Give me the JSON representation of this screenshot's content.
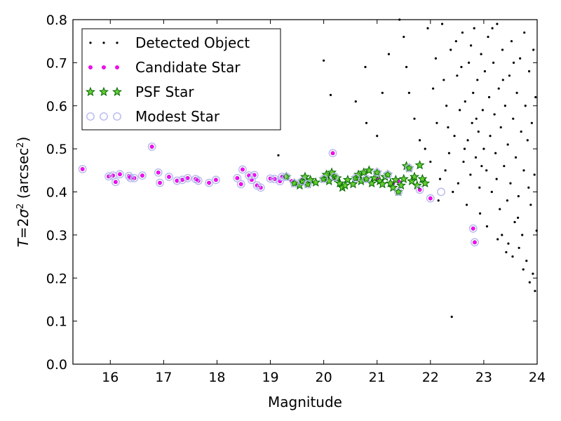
{
  "chart_data": {
    "type": "scatter",
    "xlabel": "Magnitude",
    "ylabel_parts": [
      "T",
      "=",
      "2",
      "σ",
      "2",
      " (arcsec",
      "2",
      ")"
    ],
    "xlim": [
      15.3,
      24.0
    ],
    "ylim": [
      0.0,
      0.8
    ],
    "x_ticks": [
      16,
      17,
      18,
      19,
      20,
      21,
      22,
      23,
      24
    ],
    "y_ticks": [
      0.0,
      0.1,
      0.2,
      0.3,
      0.4,
      0.5,
      0.6,
      0.7,
      0.8
    ],
    "legend": {
      "location": "top-left",
      "border": true
    },
    "colors": {
      "detected": "#000000",
      "candidate": "#ff00ff",
      "psf_fill": "#66cc33",
      "psf_edge": "#006600",
      "modest": "#b8b8f0"
    },
    "series": [
      {
        "name": "Detected Object",
        "marker": "dot",
        "points": [
          [
            19.15,
            0.485
          ],
          [
            20.0,
            0.705
          ],
          [
            20.13,
            0.625
          ],
          [
            20.6,
            0.61
          ],
          [
            20.8,
            0.56
          ],
          [
            21.0,
            0.53
          ],
          [
            20.78,
            0.69
          ],
          [
            21.1,
            0.63
          ],
          [
            21.22,
            0.72
          ],
          [
            21.42,
            0.8
          ],
          [
            21.5,
            0.76
          ],
          [
            21.55,
            0.69
          ],
          [
            21.6,
            0.63
          ],
          [
            21.7,
            0.57
          ],
          [
            21.8,
            0.52
          ],
          [
            21.9,
            0.5
          ],
          [
            21.95,
            0.78
          ],
          [
            22.0,
            0.47
          ],
          [
            22.05,
            0.64
          ],
          [
            22.1,
            0.71
          ],
          [
            22.12,
            0.56
          ],
          [
            22.18,
            0.43
          ],
          [
            22.22,
            0.79
          ],
          [
            22.28,
            0.45
          ],
          [
            22.3,
            0.6
          ],
          [
            22.35,
            0.49
          ],
          [
            22.38,
            0.73
          ],
          [
            22.4,
            0.11
          ],
          [
            22.45,
            0.53
          ],
          [
            22.5,
            0.67
          ],
          [
            22.52,
            0.42
          ],
          [
            22.55,
            0.59
          ],
          [
            22.6,
            0.77
          ],
          [
            22.62,
            0.47
          ],
          [
            22.65,
            0.61
          ],
          [
            22.7,
            0.52
          ],
          [
            22.72,
            0.7
          ],
          [
            22.75,
            0.44
          ],
          [
            22.78,
            0.56
          ],
          [
            22.8,
            0.63
          ],
          [
            22.82,
            0.78
          ],
          [
            22.85,
            0.48
          ],
          [
            22.88,
            0.66
          ],
          [
            22.9,
            0.54
          ],
          [
            22.92,
            0.41
          ],
          [
            22.95,
            0.72
          ],
          [
            22.98,
            0.59
          ],
          [
            23.0,
            0.5
          ],
          [
            23.02,
            0.68
          ],
          [
            23.05,
            0.45
          ],
          [
            23.08,
            0.76
          ],
          [
            23.1,
            0.62
          ],
          [
            23.12,
            0.53
          ],
          [
            23.15,
            0.4
          ],
          [
            23.18,
            0.7
          ],
          [
            23.2,
            0.58
          ],
          [
            23.22,
            0.49
          ],
          [
            23.25,
            0.79
          ],
          [
            23.28,
            0.64
          ],
          [
            23.3,
            0.36
          ],
          [
            23.32,
            0.55
          ],
          [
            23.35,
            0.73
          ],
          [
            23.38,
            0.46
          ],
          [
            23.4,
            0.6
          ],
          [
            23.42,
            0.26
          ],
          [
            23.45,
            0.51
          ],
          [
            23.48,
            0.67
          ],
          [
            23.5,
            0.42
          ],
          [
            23.52,
            0.75
          ],
          [
            23.55,
            0.57
          ],
          [
            23.58,
            0.33
          ],
          [
            23.6,
            0.48
          ],
          [
            23.62,
            0.63
          ],
          [
            23.65,
            0.39
          ],
          [
            23.68,
            0.71
          ],
          [
            23.7,
            0.54
          ],
          [
            23.72,
            0.3
          ],
          [
            23.75,
            0.45
          ],
          [
            23.78,
            0.6
          ],
          [
            23.8,
            0.24
          ],
          [
            23.82,
            0.52
          ],
          [
            23.85,
            0.68
          ],
          [
            23.88,
            0.37
          ],
          [
            23.9,
            0.56
          ],
          [
            23.92,
            0.21
          ],
          [
            23.95,
            0.44
          ],
          [
            23.97,
            0.62
          ],
          [
            23.99,
            0.31
          ],
          [
            22.15,
            0.38
          ],
          [
            22.42,
            0.4
          ],
          [
            22.68,
            0.37
          ],
          [
            22.93,
            0.35
          ],
          [
            23.06,
            0.32
          ],
          [
            23.26,
            0.29
          ],
          [
            23.46,
            0.28
          ],
          [
            23.66,
            0.27
          ],
          [
            23.86,
            0.19
          ],
          [
            23.96,
            0.17
          ],
          [
            22.25,
            0.66
          ],
          [
            22.48,
            0.75
          ],
          [
            22.58,
            0.69
          ],
          [
            22.76,
            0.74
          ],
          [
            22.86,
            0.57
          ],
          [
            23.16,
            0.78
          ],
          [
            23.36,
            0.66
          ],
          [
            23.56,
            0.7
          ],
          [
            23.76,
            0.77
          ],
          [
            23.93,
            0.73
          ],
          [
            22.33,
            0.55
          ],
          [
            22.64,
            0.5
          ],
          [
            22.96,
            0.46
          ],
          [
            23.24,
            0.43
          ],
          [
            23.44,
            0.38
          ],
          [
            23.64,
            0.34
          ],
          [
            23.84,
            0.41
          ],
          [
            23.74,
            0.22
          ],
          [
            23.54,
            0.25
          ],
          [
            23.34,
            0.3
          ]
        ]
      },
      {
        "name": "Candidate Star",
        "marker": "circle-small",
        "points": [
          [
            15.48,
            0.453
          ],
          [
            15.97,
            0.436
          ],
          [
            16.05,
            0.438
          ],
          [
            16.1,
            0.423
          ],
          [
            16.18,
            0.441
          ],
          [
            16.35,
            0.437
          ],
          [
            16.38,
            0.432
          ],
          [
            16.45,
            0.432
          ],
          [
            16.6,
            0.438
          ],
          [
            16.78,
            0.505
          ],
          [
            16.9,
            0.445
          ],
          [
            16.93,
            0.421
          ],
          [
            17.1,
            0.435
          ],
          [
            17.25,
            0.426
          ],
          [
            17.35,
            0.428
          ],
          [
            17.45,
            0.432
          ],
          [
            17.6,
            0.43
          ],
          [
            17.65,
            0.426
          ],
          [
            17.85,
            0.421
          ],
          [
            17.98,
            0.428
          ],
          [
            18.38,
            0.432
          ],
          [
            18.45,
            0.418
          ],
          [
            18.48,
            0.452
          ],
          [
            18.6,
            0.438
          ],
          [
            18.65,
            0.428
          ],
          [
            18.7,
            0.439
          ],
          [
            18.75,
            0.415
          ],
          [
            18.82,
            0.41
          ],
          [
            19.0,
            0.431
          ],
          [
            19.08,
            0.43
          ],
          [
            19.18,
            0.425
          ],
          [
            19.22,
            0.435
          ],
          [
            19.4,
            0.425
          ],
          [
            19.6,
            0.428
          ],
          [
            20.2,
            0.43
          ],
          [
            20.8,
            0.43
          ],
          [
            21.0,
            0.43
          ],
          [
            21.3,
            0.42
          ],
          [
            21.4,
            0.425
          ],
          [
            21.8,
            0.405
          ],
          [
            22.0,
            0.385
          ],
          [
            22.8,
            0.315
          ],
          [
            22.83,
            0.283
          ],
          [
            20.17,
            0.49
          ]
        ]
      },
      {
        "name": "PSF Star",
        "marker": "star",
        "points": [
          [
            19.3,
            0.435
          ],
          [
            19.45,
            0.42
          ],
          [
            19.55,
            0.415
          ],
          [
            19.6,
            0.425
          ],
          [
            19.65,
            0.435
          ],
          [
            19.7,
            0.418
          ],
          [
            19.85,
            0.422
          ],
          [
            20.0,
            0.43
          ],
          [
            20.05,
            0.44
          ],
          [
            20.1,
            0.425
          ],
          [
            20.15,
            0.445
          ],
          [
            20.2,
            0.435
          ],
          [
            20.3,
            0.42
          ],
          [
            20.35,
            0.41
          ],
          [
            20.45,
            0.428
          ],
          [
            20.55,
            0.418
          ],
          [
            20.6,
            0.432
          ],
          [
            20.65,
            0.44
          ],
          [
            20.7,
            0.425
          ],
          [
            20.75,
            0.445
          ],
          [
            20.8,
            0.43
          ],
          [
            20.85,
            0.45
          ],
          [
            20.9,
            0.42
          ],
          [
            20.95,
            0.432
          ],
          [
            21.0,
            0.445
          ],
          [
            21.05,
            0.425
          ],
          [
            21.1,
            0.418
          ],
          [
            21.15,
            0.435
          ],
          [
            21.2,
            0.44
          ],
          [
            21.25,
            0.42
          ],
          [
            21.3,
            0.41
          ],
          [
            21.35,
            0.428
          ],
          [
            21.4,
            0.4
          ],
          [
            21.45,
            0.415
          ],
          [
            21.5,
            0.43
          ],
          [
            21.55,
            0.46
          ],
          [
            21.6,
            0.455
          ],
          [
            21.65,
            0.425
          ],
          [
            21.7,
            0.435
          ],
          [
            21.75,
            0.415
          ],
          [
            21.8,
            0.462
          ],
          [
            21.85,
            0.43
          ],
          [
            21.9,
            0.42
          ],
          [
            20.4,
            0.415
          ],
          [
            19.75,
            0.428
          ],
          [
            20.25,
            0.432
          ]
        ]
      },
      {
        "name": "Modest Star",
        "marker": "circle-open",
        "points": [
          [
            15.48,
            0.453
          ],
          [
            15.97,
            0.436
          ],
          [
            16.05,
            0.438
          ],
          [
            16.1,
            0.423
          ],
          [
            16.18,
            0.441
          ],
          [
            16.35,
            0.437
          ],
          [
            16.38,
            0.432
          ],
          [
            16.45,
            0.432
          ],
          [
            16.6,
            0.438
          ],
          [
            16.78,
            0.505
          ],
          [
            16.9,
            0.445
          ],
          [
            16.93,
            0.421
          ],
          [
            17.1,
            0.435
          ],
          [
            17.25,
            0.426
          ],
          [
            17.35,
            0.428
          ],
          [
            17.45,
            0.432
          ],
          [
            17.6,
            0.43
          ],
          [
            17.65,
            0.426
          ],
          [
            17.85,
            0.421
          ],
          [
            17.98,
            0.428
          ],
          [
            18.38,
            0.432
          ],
          [
            18.45,
            0.418
          ],
          [
            18.48,
            0.452
          ],
          [
            18.6,
            0.438
          ],
          [
            18.65,
            0.428
          ],
          [
            18.7,
            0.439
          ],
          [
            18.75,
            0.415
          ],
          [
            18.82,
            0.41
          ],
          [
            19.0,
            0.431
          ],
          [
            19.08,
            0.43
          ],
          [
            19.18,
            0.425
          ],
          [
            19.22,
            0.435
          ],
          [
            19.3,
            0.435
          ],
          [
            19.45,
            0.42
          ],
          [
            19.6,
            0.425
          ],
          [
            19.7,
            0.418
          ],
          [
            20.0,
            0.43
          ],
          [
            20.17,
            0.49
          ],
          [
            20.2,
            0.435
          ],
          [
            20.6,
            0.432
          ],
          [
            20.8,
            0.43
          ],
          [
            21.0,
            0.445
          ],
          [
            21.2,
            0.44
          ],
          [
            21.4,
            0.4
          ],
          [
            21.6,
            0.455
          ],
          [
            21.8,
            0.405
          ],
          [
            22.0,
            0.385
          ],
          [
            22.2,
            0.4
          ],
          [
            22.8,
            0.315
          ],
          [
            22.83,
            0.283
          ]
        ]
      }
    ]
  }
}
